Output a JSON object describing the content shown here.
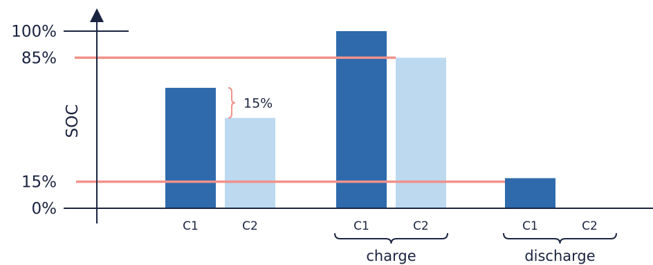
{
  "chart_data": {
    "type": "bar",
    "title": "",
    "ylabel": "SOC",
    "xlabel": "",
    "ylim": [
      0,
      100
    ],
    "yticks": [
      "100%",
      "85%",
      "15%",
      "0%"
    ],
    "ytick_values": [
      100,
      85,
      15,
      0
    ],
    "groups": [
      {
        "name": "",
        "bars": [
          {
            "label": "C1",
            "value": 68,
            "series": "C1"
          },
          {
            "label": "C2",
            "value": 51,
            "series": "C2"
          }
        ]
      },
      {
        "name": "charge",
        "bars": [
          {
            "label": "C1",
            "value": 100,
            "series": "C1"
          },
          {
            "label": "C2",
            "value": 85,
            "series": "C2"
          }
        ]
      },
      {
        "name": "discharge",
        "bars": [
          {
            "label": "C1",
            "value": 17,
            "series": "C1"
          },
          {
            "label": "C2",
            "value": 0,
            "series": "C2"
          }
        ]
      }
    ],
    "reference_lines": [
      {
        "value": 85,
        "color": "#f0928a"
      },
      {
        "value": 15,
        "color": "#f0928a"
      }
    ],
    "annotation": {
      "text": "15%"
    },
    "colors": {
      "C1": "#2e6aac",
      "C2": "#bcd9f0",
      "axis": "#1a2340",
      "reference": "#f0928a"
    }
  }
}
